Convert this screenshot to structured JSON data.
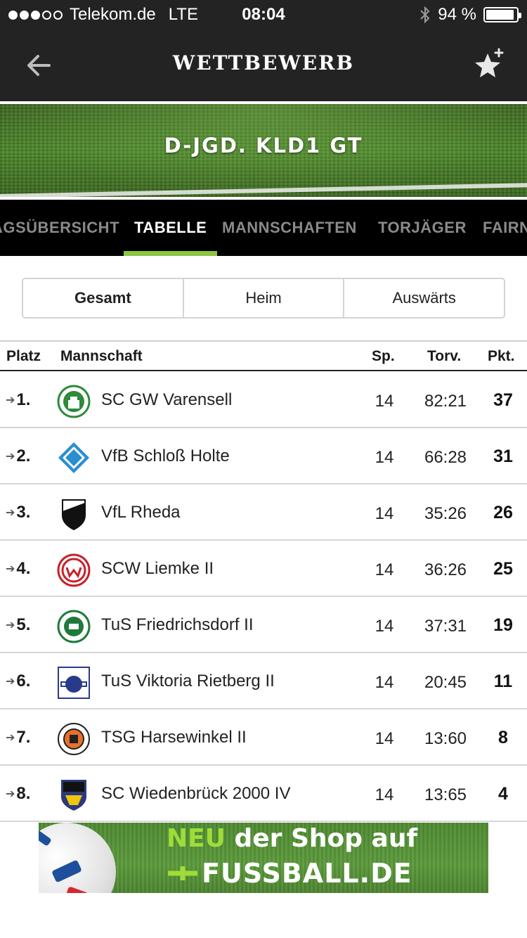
{
  "status": {
    "carrier": "Telekom.de",
    "network": "LTE",
    "time": "08:04",
    "battery": "94 %",
    "battery_level": 0.94,
    "signal_bars": 3
  },
  "nav": {
    "title": "WETTBEWERB",
    "back_icon": "arrow-left-icon",
    "favorite_icon": "star-plus-icon"
  },
  "banner": {
    "title": "D-JGD. KLD1 GT"
  },
  "tabs": [
    {
      "label": "AGSÜBERSICHT"
    },
    {
      "label": "TABELLE"
    },
    {
      "label": "MANNSCHAFTEN"
    },
    {
      "label": "TORJÄGER"
    },
    {
      "label": "FAIRNESS"
    }
  ],
  "segment": {
    "options": [
      "Gesamt",
      "Heim",
      "Auswärts"
    ]
  },
  "table": {
    "headers": {
      "platz": "Platz",
      "mannschaft": "Mannschaft",
      "sp": "Sp.",
      "torv": "Torv.",
      "pkt": "Pkt."
    },
    "rows": [
      {
        "rank": "1.",
        "team": "SC GW Varensell",
        "sp": "14",
        "torv": "82:21",
        "pkt": "37"
      },
      {
        "rank": "2.",
        "team": "VfB Schloß Holte",
        "sp": "14",
        "torv": "66:28",
        "pkt": "31"
      },
      {
        "rank": "3.",
        "team": "VfL Rheda",
        "sp": "14",
        "torv": "35:26",
        "pkt": "26"
      },
      {
        "rank": "4.",
        "team": "SCW Liemke II",
        "sp": "14",
        "torv": "36:26",
        "pkt": "25"
      },
      {
        "rank": "5.",
        "team": "TuS Friedrichsdorf II",
        "sp": "14",
        "torv": "37:31",
        "pkt": "19"
      },
      {
        "rank": "6.",
        "team": "TuS Viktoria Rietberg II",
        "sp": "14",
        "torv": "20:45",
        "pkt": "11"
      },
      {
        "rank": "7.",
        "team": "TSG Harsewinkel II",
        "sp": "14",
        "torv": "13:60",
        "pkt": "8"
      },
      {
        "rank": "8.",
        "team": "SC Wiedenbrück 2000 IV",
        "sp": "14",
        "torv": "13:65",
        "pkt": "4"
      }
    ]
  },
  "ad": {
    "neu": "NEU",
    "line1": " der Shop auf",
    "line2": "FUSSBALL.DE"
  }
}
